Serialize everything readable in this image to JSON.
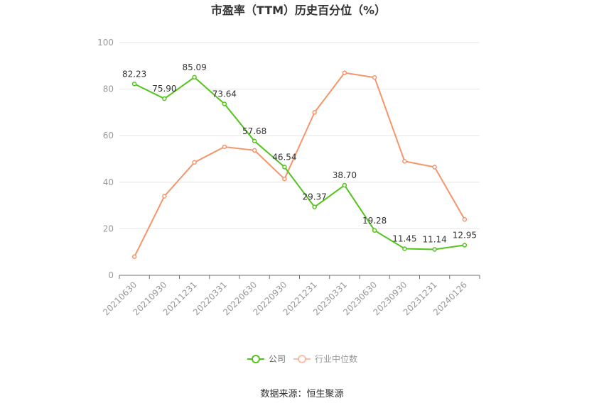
{
  "source": "数据来源：恒生聚源",
  "chart_data": {
    "type": "line",
    "title": "市盈率（TTM）历史百分位（%）",
    "xlabel": "",
    "ylabel": "",
    "categories": [
      "20210630",
      "20210930",
      "20211231",
      "20220331",
      "20220630",
      "20220930",
      "20221231",
      "20230331",
      "20230630",
      "20230930",
      "20231231",
      "20240126"
    ],
    "ylim": [
      0,
      100
    ],
    "yticks": [
      0,
      20,
      40,
      60,
      80,
      100
    ],
    "grid": true,
    "legend_position": "bottom",
    "series": [
      {
        "name": "公司",
        "color": "#52c41a",
        "values": [
          82.23,
          75.9,
          85.09,
          73.64,
          57.68,
          46.54,
          29.37,
          38.7,
          19.28,
          11.45,
          11.14,
          12.95
        ],
        "labels": [
          "82.23",
          "75.90",
          "85.09",
          "73.64",
          "57.68",
          "46.54",
          "29.37",
          "38.70",
          "19.28",
          "11.45",
          "11.14",
          "12.95"
        ]
      },
      {
        "name": "行业中位数",
        "color": "#f4956a",
        "values": [
          8,
          34,
          48.5,
          55.2,
          53.7,
          41.4,
          70,
          87,
          85,
          49,
          46.5,
          24
        ]
      }
    ]
  }
}
